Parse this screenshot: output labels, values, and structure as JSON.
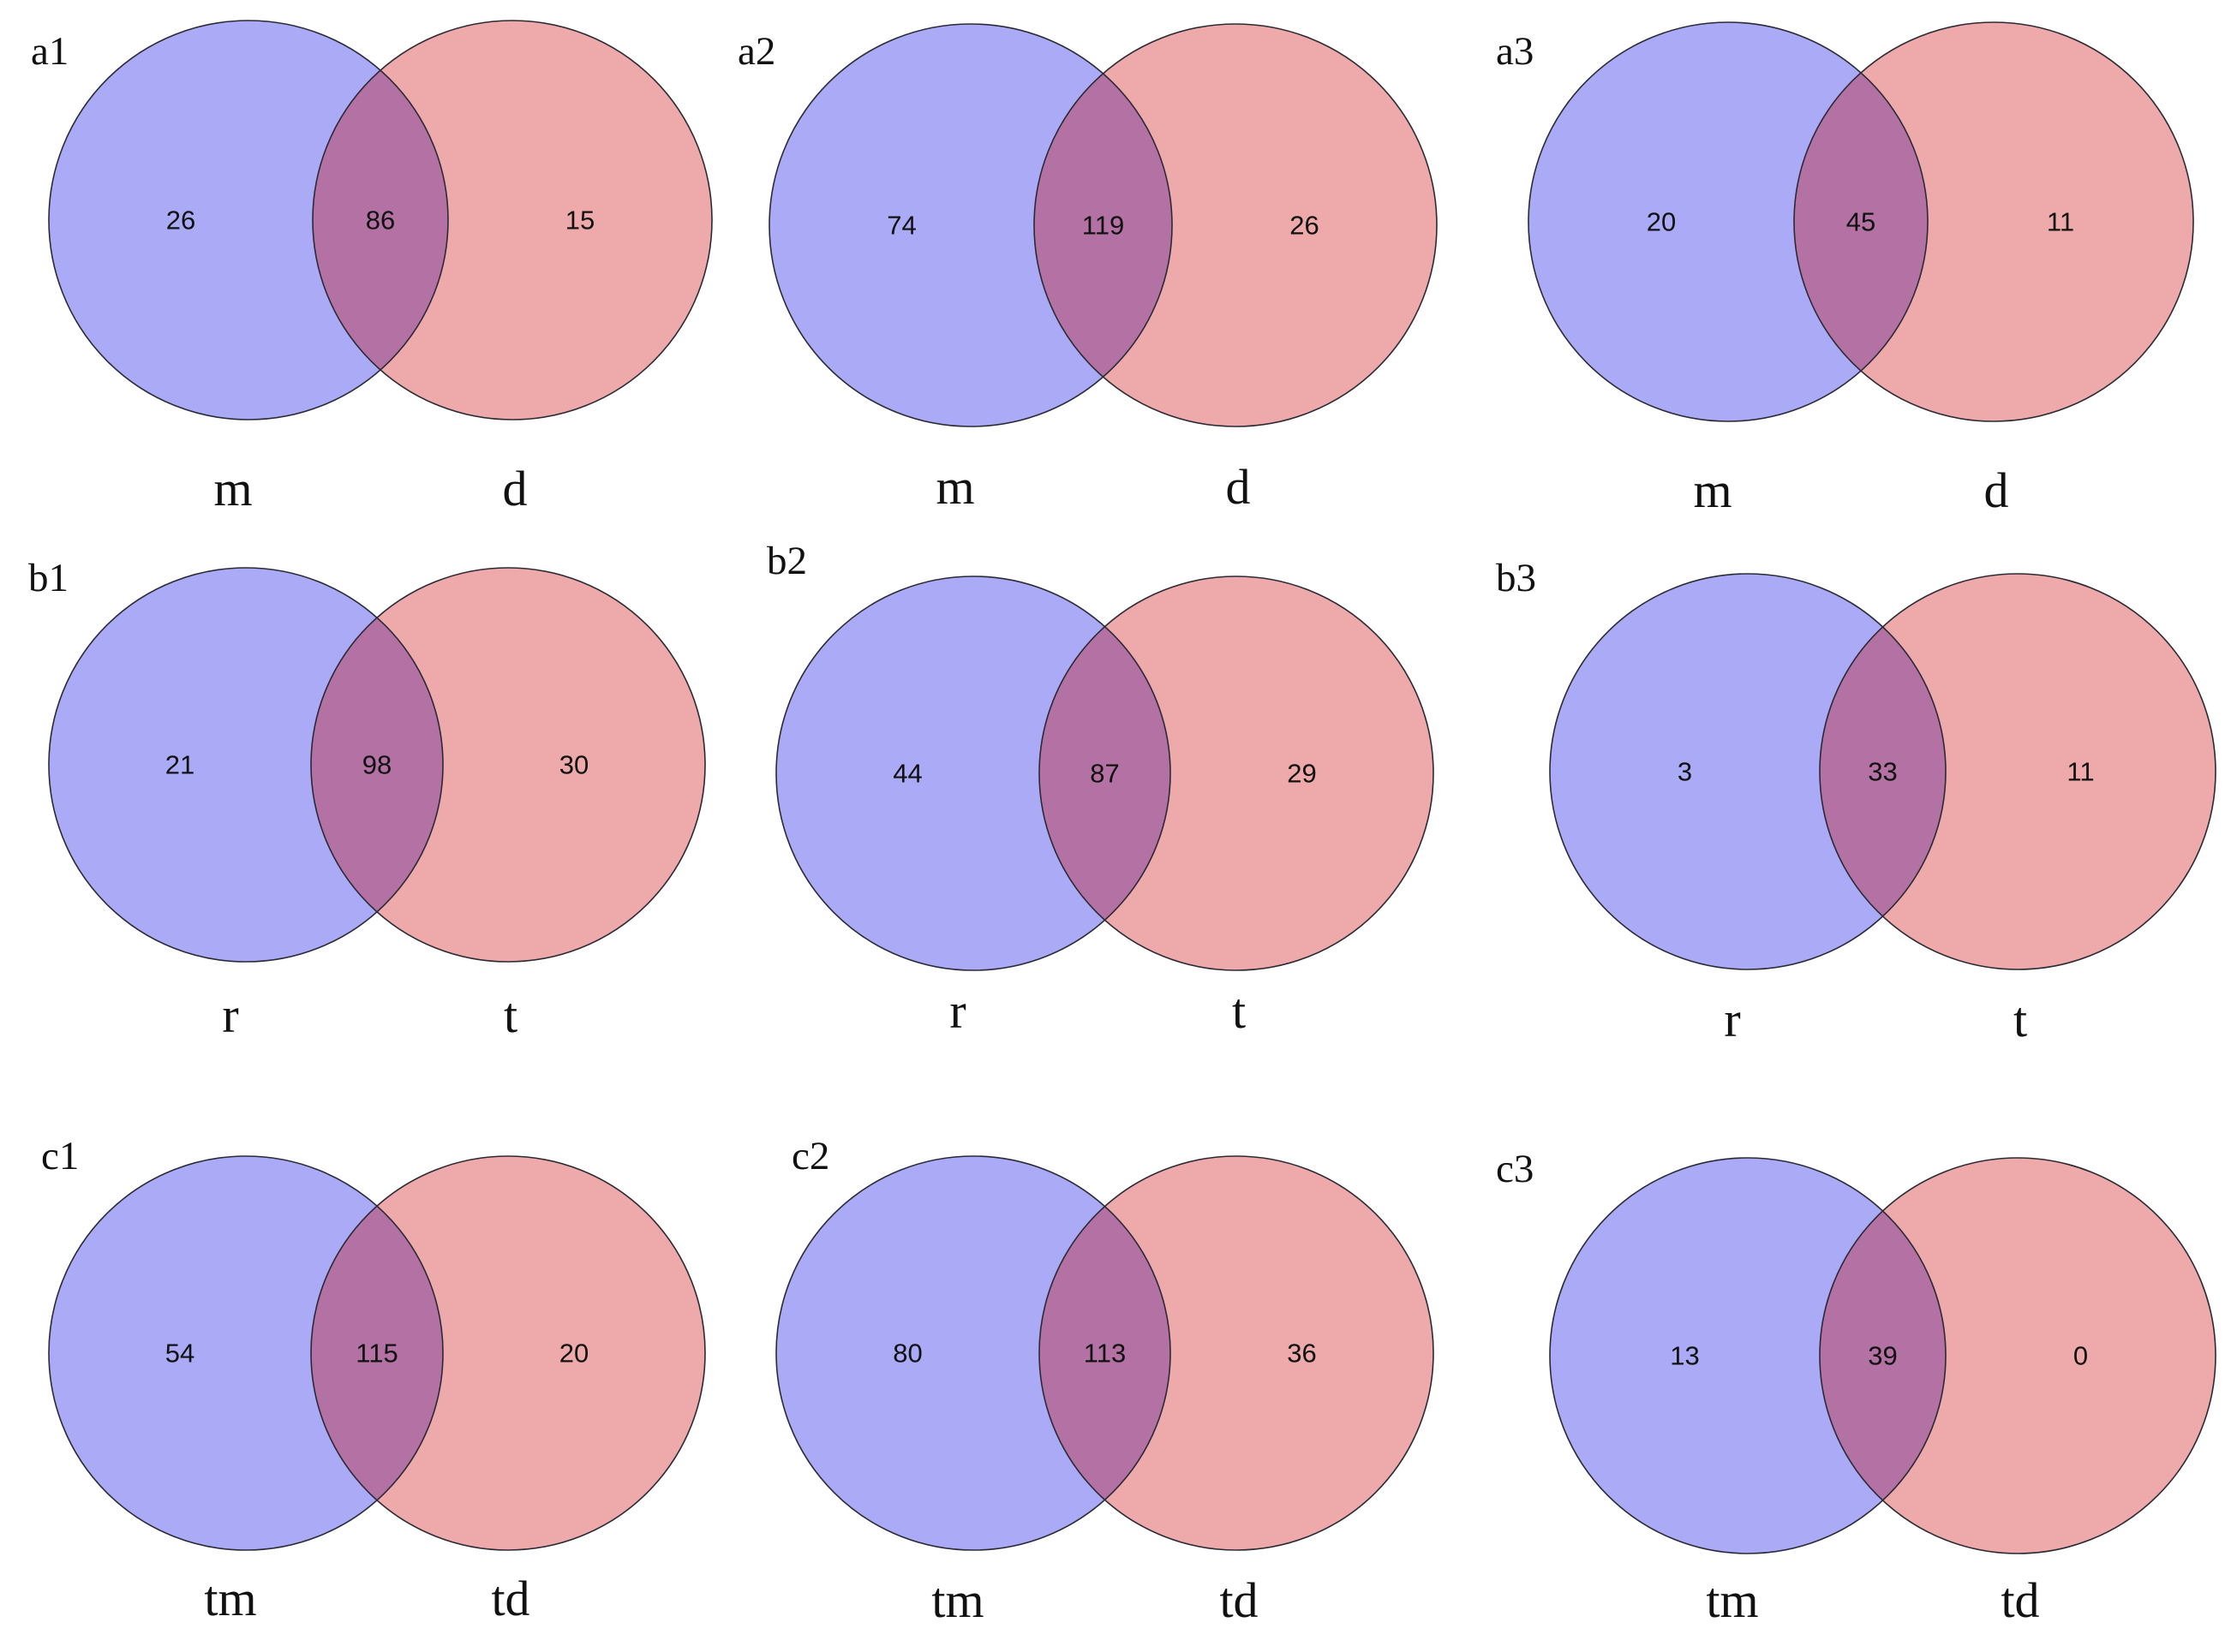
{
  "colors": {
    "left_set": "#aaaaf6",
    "right_set": "#eeaaaa",
    "overlap": "#b472a4",
    "outline": "#2a2a35"
  },
  "panels": [
    {
      "label": "a1",
      "left_label": "m",
      "right_label": "d",
      "left_only": "26",
      "both": "86",
      "right_only": "15"
    },
    {
      "label": "a2",
      "left_label": "m",
      "right_label": "d",
      "left_only": "74",
      "both": "119",
      "right_only": "26"
    },
    {
      "label": "a3",
      "left_label": "m",
      "right_label": "d",
      "left_only": "20",
      "both": "45",
      "right_only": "11"
    },
    {
      "label": "b1",
      "left_label": "r",
      "right_label": "t",
      "left_only": "21",
      "both": "98",
      "right_only": "30"
    },
    {
      "label": "b2",
      "left_label": "r",
      "right_label": "t",
      "left_only": "44",
      "both": "87",
      "right_only": "29"
    },
    {
      "label": "b3",
      "left_label": "r",
      "right_label": "t",
      "left_only": "3",
      "both": "33",
      "right_only": "11"
    },
    {
      "label": "c1",
      "left_label": "tm",
      "right_label": "td",
      "left_only": "54",
      "both": "115",
      "right_only": "20"
    },
    {
      "label": "c2",
      "left_label": "tm",
      "right_label": "td",
      "left_only": "80",
      "both": "113",
      "right_only": "36"
    },
    {
      "label": "c3",
      "left_label": "tm",
      "right_label": "td",
      "left_only": "13",
      "both": "39",
      "right_only": "0"
    }
  ]
}
